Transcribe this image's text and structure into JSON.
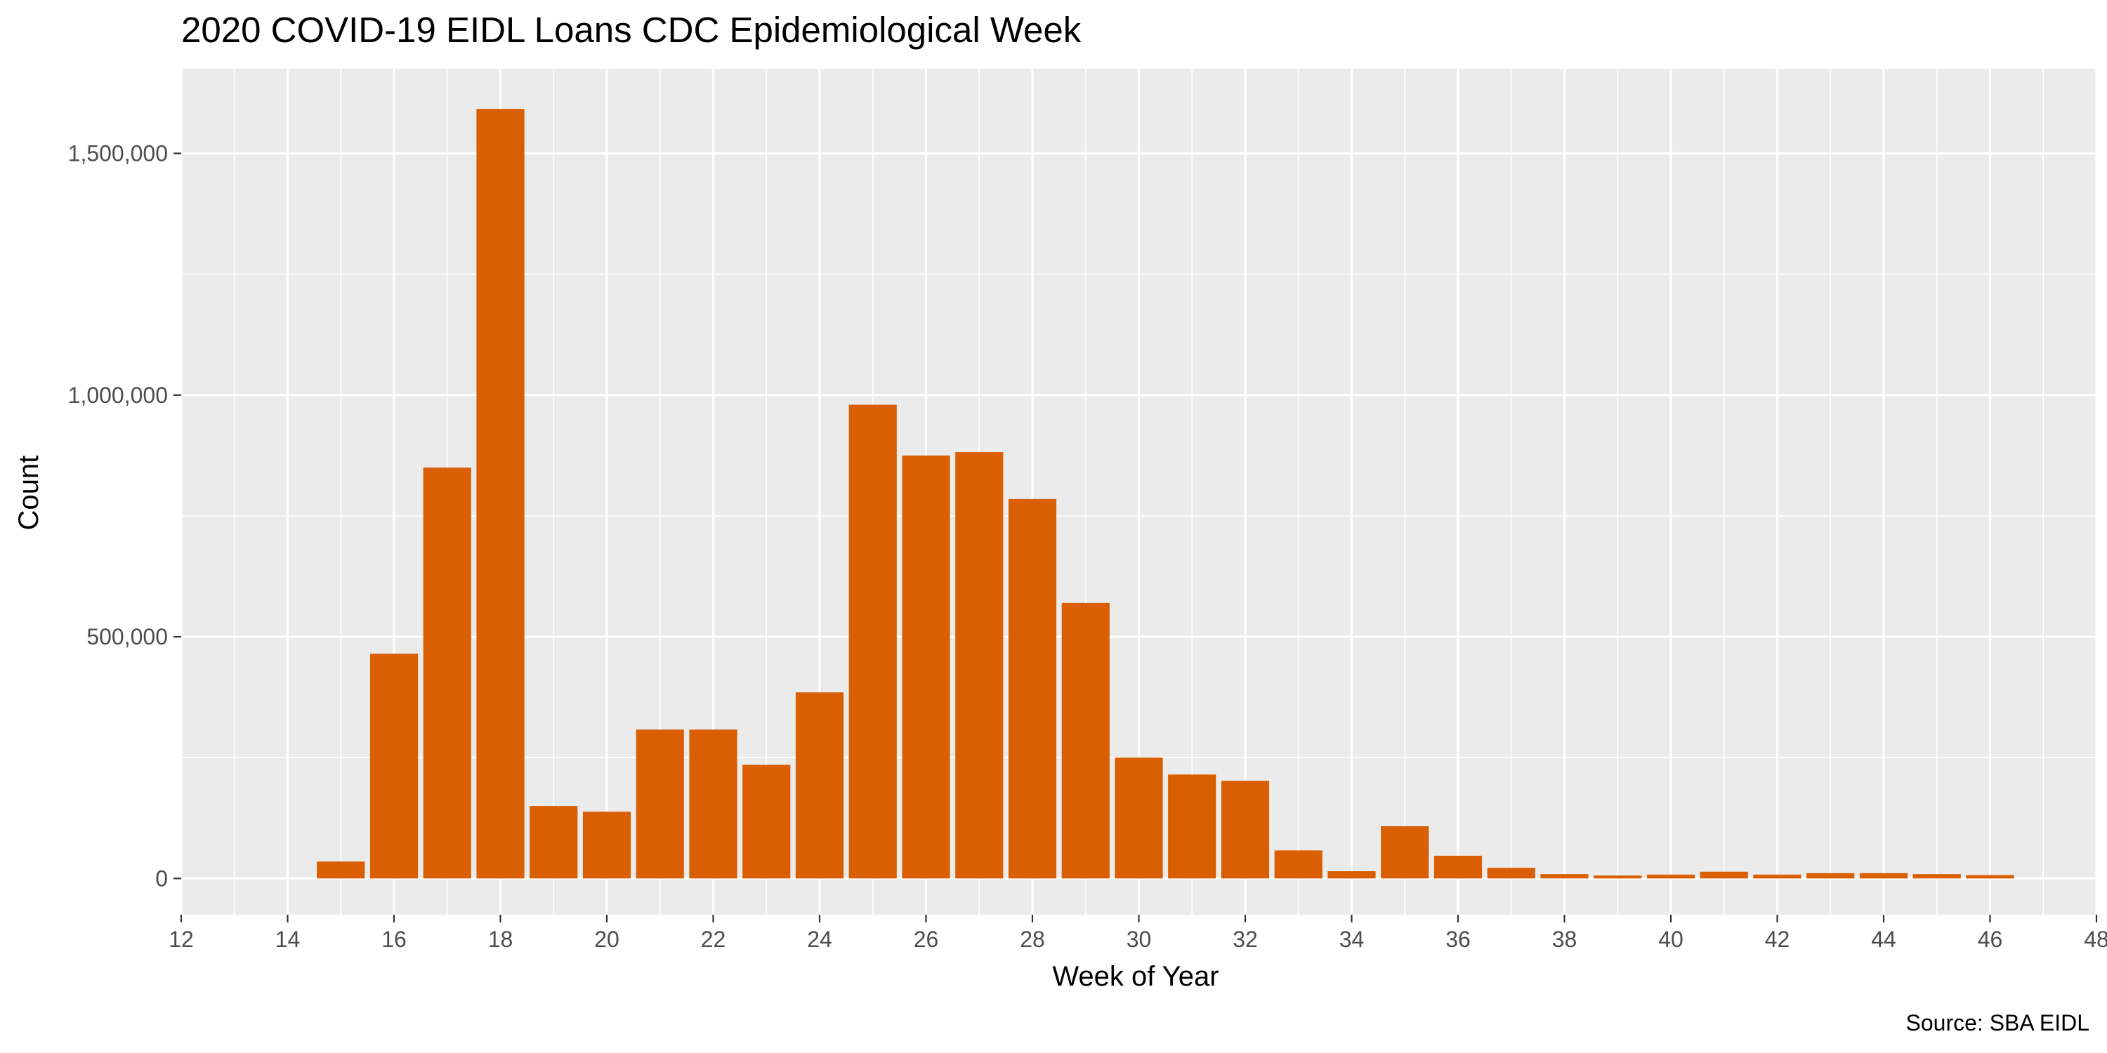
{
  "chart_data": {
    "type": "bar",
    "title": "2020 COVID-19 EIDL Loans CDC Epidemiological Week",
    "xlabel": "Week of Year",
    "ylabel": "Count",
    "caption": "Source: SBA EIDL",
    "x": [
      15,
      16,
      17,
      18,
      19,
      20,
      21,
      22,
      23,
      24,
      25,
      26,
      27,
      28,
      29,
      30,
      31,
      32,
      33,
      34,
      35,
      36,
      37,
      38,
      39,
      40,
      41,
      42,
      43,
      44,
      45,
      46
    ],
    "values": [
      35000,
      465000,
      850000,
      1592000,
      150000,
      138000,
      308000,
      308000,
      235000,
      385000,
      980000,
      875000,
      882000,
      785000,
      570000,
      250000,
      215000,
      202000,
      58000,
      15000,
      108000,
      47000,
      22000,
      9000,
      6000,
      8000,
      14000,
      8000,
      11000,
      11000,
      9000,
      7000
    ],
    "xlim": [
      12,
      48
    ],
    "ylim": [
      -75000,
      1675000
    ],
    "x_ticks": [
      12,
      14,
      16,
      18,
      20,
      22,
      24,
      26,
      28,
      30,
      32,
      34,
      36,
      38,
      40,
      42,
      44,
      46,
      48
    ],
    "x_tick_labels": [
      "12",
      "14",
      "16",
      "18",
      "20",
      "22",
      "24",
      "26",
      "28",
      "30",
      "32",
      "34",
      "36",
      "38",
      "40",
      "42",
      "44",
      "46",
      "48"
    ],
    "y_ticks": [
      0,
      500000,
      1000000,
      1500000
    ],
    "y_tick_labels": [
      "0",
      "500,000",
      "1,000,000",
      "1,500,000"
    ],
    "grid": true,
    "legend": "none",
    "colors": {
      "bar": "#d95f02",
      "panel": "#ebebeb",
      "grid_major": "#ffffff",
      "grid_minor": "#f4f4f4",
      "tick_text": "#4d4d4d",
      "tick_mark": "#333333"
    }
  }
}
